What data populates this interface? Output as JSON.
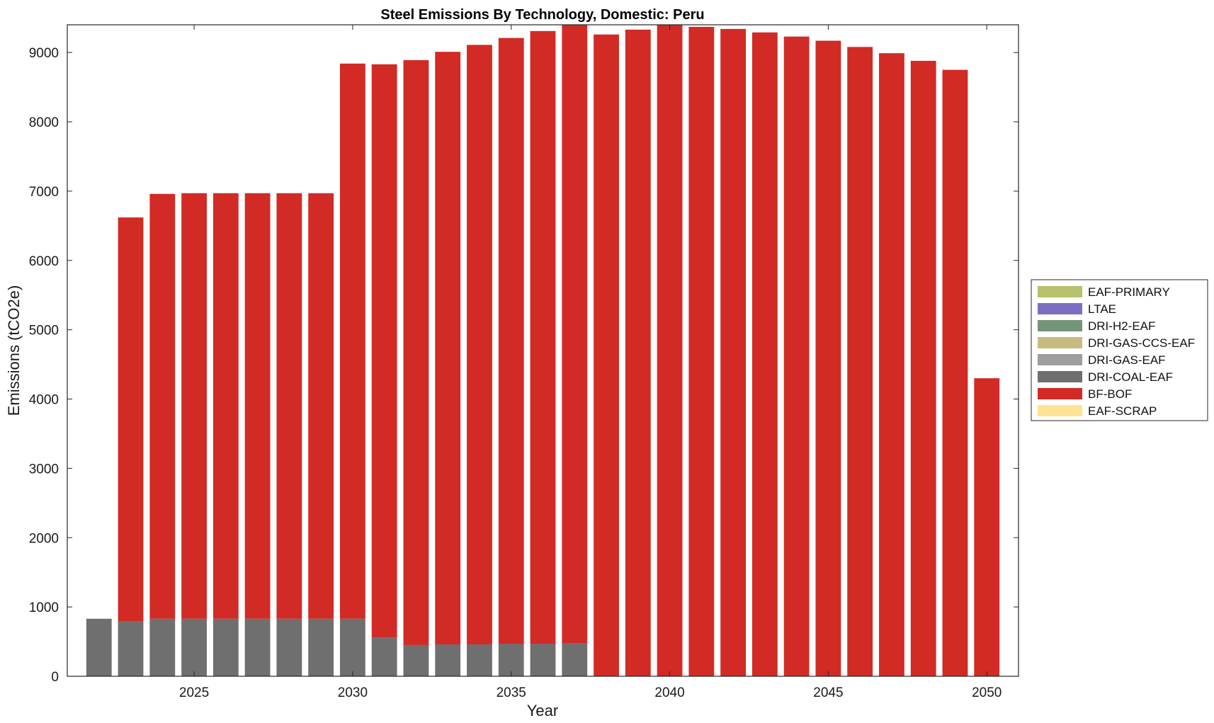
{
  "chart_data": {
    "type": "bar",
    "stacked": true,
    "title": "Steel Emissions By Technology, Domestic: Peru",
    "xlabel": "Year",
    "ylabel": "Emissions (tCO2e)",
    "xlim": [
      2021,
      2051
    ],
    "ylim": [
      0,
      9400
    ],
    "x_ticks": [
      2025,
      2030,
      2035,
      2040,
      2045,
      2050
    ],
    "y_ticks": [
      0,
      1000,
      2000,
      3000,
      4000,
      5000,
      6000,
      7000,
      8000,
      9000
    ],
    "legend_position": "right",
    "categories": [
      2022,
      2023,
      2024,
      2025,
      2026,
      2027,
      2028,
      2029,
      2030,
      2031,
      2032,
      2033,
      2034,
      2035,
      2036,
      2037,
      2038,
      2039,
      2040,
      2041,
      2042,
      2043,
      2044,
      2045,
      2046,
      2047,
      2048,
      2049,
      2050
    ],
    "series": [
      {
        "name": "EAF-PRIMARY",
        "color": "#b7c06a",
        "values": [
          0,
          0,
          0,
          0,
          0,
          0,
          0,
          0,
          0,
          0,
          0,
          0,
          0,
          0,
          0,
          0,
          0,
          0,
          0,
          0,
          0,
          0,
          0,
          0,
          0,
          0,
          0,
          0,
          0
        ]
      },
      {
        "name": "LTAE",
        "color": "#7a6fc0",
        "values": [
          0,
          0,
          0,
          0,
          0,
          0,
          0,
          0,
          0,
          0,
          0,
          0,
          0,
          0,
          0,
          0,
          0,
          0,
          0,
          0,
          0,
          0,
          0,
          0,
          0,
          0,
          0,
          0,
          0
        ]
      },
      {
        "name": "DRI-H2-EAF",
        "color": "#74957a",
        "values": [
          0,
          0,
          0,
          0,
          0,
          0,
          0,
          0,
          0,
          0,
          0,
          0,
          0,
          0,
          0,
          0,
          0,
          0,
          0,
          0,
          0,
          0,
          0,
          0,
          0,
          0,
          0,
          0,
          0
        ]
      },
      {
        "name": "DRI-GAS-CCS-EAF",
        "color": "#c8bb7f",
        "values": [
          0,
          0,
          0,
          0,
          0,
          0,
          0,
          0,
          0,
          0,
          0,
          0,
          0,
          0,
          0,
          0,
          0,
          0,
          0,
          0,
          0,
          0,
          0,
          0,
          0,
          0,
          0,
          0,
          0
        ]
      },
      {
        "name": "DRI-GAS-EAF",
        "color": "#9e9e9e",
        "values": [
          0,
          0,
          0,
          0,
          0,
          0,
          0,
          0,
          0,
          0,
          0,
          0,
          0,
          0,
          0,
          0,
          0,
          0,
          0,
          0,
          0,
          0,
          0,
          0,
          0,
          0,
          0,
          0,
          0
        ]
      },
      {
        "name": "DRI-COAL-EAF",
        "color": "#6f6f6f",
        "values": [
          830,
          790,
          830,
          830,
          830,
          830,
          830,
          830,
          830,
          560,
          450,
          460,
          460,
          470,
          470,
          480,
          0,
          0,
          0,
          0,
          0,
          0,
          0,
          0,
          0,
          0,
          0,
          0,
          0
        ]
      },
      {
        "name": "BF-BOF",
        "color": "#d22a25",
        "values": [
          0,
          5830,
          6130,
          6140,
          6140,
          6140,
          6140,
          6140,
          8010,
          8270,
          8440,
          8550,
          8650,
          8740,
          8840,
          8920,
          9260,
          9330,
          9400,
          9370,
          9340,
          9290,
          9230,
          9170,
          9080,
          8990,
          8880,
          8750,
          4300
        ]
      },
      {
        "name": "EAF-SCRAP",
        "color": "#fde393",
        "values": [
          0,
          0,
          0,
          0,
          0,
          0,
          0,
          0,
          0,
          0,
          0,
          0,
          0,
          0,
          0,
          0,
          0,
          0,
          0,
          0,
          0,
          0,
          0,
          0,
          0,
          0,
          0,
          0,
          0
        ]
      }
    ]
  }
}
